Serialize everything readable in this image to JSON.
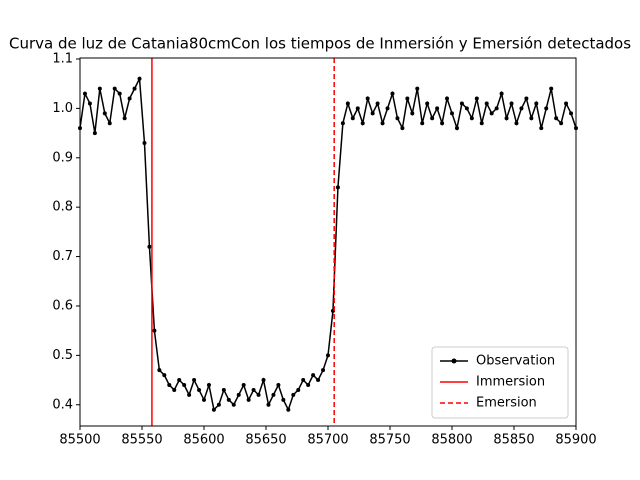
{
  "chart_data": {
    "type": "line",
    "title": "Curva de luz de Catania80cmCon los tiempos de Inmersión y Emersión detectados",
    "x": [
      85500,
      85504,
      85508,
      85512,
      85516,
      85520,
      85524,
      85528,
      85532,
      85536,
      85540,
      85544,
      85548,
      85552,
      85556,
      85560,
      85564,
      85568,
      85572,
      85576,
      85580,
      85584,
      85588,
      85592,
      85596,
      85600,
      85604,
      85608,
      85612,
      85616,
      85620,
      85624,
      85628,
      85632,
      85636,
      85640,
      85644,
      85648,
      85652,
      85656,
      85660,
      85664,
      85668,
      85672,
      85676,
      85680,
      85684,
      85688,
      85692,
      85696,
      85700,
      85704,
      85708,
      85712,
      85716,
      85720,
      85724,
      85728,
      85732,
      85736,
      85740,
      85744,
      85748,
      85752,
      85756,
      85760,
      85764,
      85768,
      85772,
      85776,
      85780,
      85784,
      85788,
      85792,
      85796,
      85800,
      85804,
      85808,
      85812,
      85816,
      85820,
      85824,
      85828,
      85832,
      85836,
      85840,
      85844,
      85848,
      85852,
      85856,
      85860,
      85864,
      85868,
      85872,
      85876,
      85880,
      85884,
      85888,
      85892,
      85896,
      85900
    ],
    "series": [
      {
        "name": "Observation",
        "color": "#000000",
        "values": [
          0.96,
          1.03,
          1.01,
          0.95,
          1.04,
          0.99,
          0.97,
          1.04,
          1.03,
          0.98,
          1.02,
          1.04,
          1.06,
          0.93,
          0.72,
          0.55,
          0.47,
          0.46,
          0.44,
          0.43,
          0.45,
          0.44,
          0.42,
          0.45,
          0.43,
          0.41,
          0.44,
          0.39,
          0.4,
          0.43,
          0.41,
          0.4,
          0.42,
          0.44,
          0.41,
          0.43,
          0.42,
          0.45,
          0.4,
          0.42,
          0.44,
          0.41,
          0.39,
          0.42,
          0.43,
          0.45,
          0.44,
          0.46,
          0.45,
          0.47,
          0.5,
          0.59,
          0.84,
          0.97,
          1.01,
          0.98,
          1.0,
          0.97,
          1.02,
          0.99,
          1.01,
          0.97,
          1.0,
          1.03,
          0.98,
          0.96,
          1.02,
          0.99,
          1.04,
          0.97,
          1.01,
          0.98,
          1.0,
          0.97,
          1.02,
          0.99,
          0.96,
          1.01,
          1.0,
          0.98,
          1.02,
          0.97,
          1.01,
          0.99,
          1.0,
          1.03,
          0.98,
          1.01,
          0.97,
          1.0,
          1.02,
          0.98,
          1.01,
          0.96,
          1.0,
          1.04,
          0.98,
          0.97,
          1.01,
          0.99,
          0.96
        ]
      }
    ],
    "vlines": [
      {
        "name": "Immersion",
        "x": 85558,
        "color": "#ff0000",
        "dash": false
      },
      {
        "name": "Emersion",
        "x": 85705,
        "color": "#ff0000",
        "dash": true
      }
    ],
    "xlim": [
      85500,
      85900
    ],
    "xticks": [
      85500,
      85550,
      85600,
      85650,
      85700,
      85750,
      85800,
      85850,
      85900
    ],
    "ylim": [
      0.357,
      1.102
    ],
    "yticks": [
      0.4,
      0.5,
      0.6,
      0.7,
      0.8,
      0.9,
      {
        "value": 1.0,
        "label": "1.0"
      },
      1.1
    ],
    "legend": "lower right"
  }
}
